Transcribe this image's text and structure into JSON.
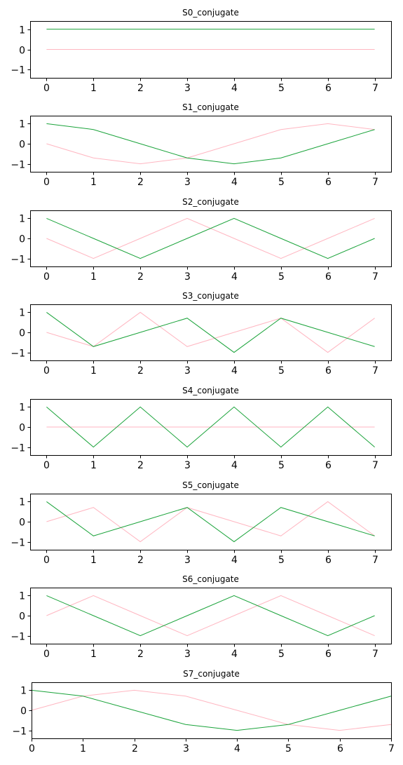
{
  "chart_data": [
    {
      "type": "line",
      "title": "S0_conjugate",
      "x": [
        0,
        1,
        2,
        3,
        4,
        5,
        6,
        7
      ],
      "xlim": [
        -0.35,
        7.35
      ],
      "ylim": [
        -1.4,
        1.4
      ],
      "xticks": [
        "0",
        "1",
        "2",
        "3",
        "4",
        "5",
        "6",
        "7"
      ],
      "yticks": [
        "1",
        "0",
        "−1"
      ],
      "ytick_values": [
        1,
        0,
        -1
      ],
      "grid": false,
      "series": [
        {
          "color": "#ffb6c1",
          "values": [
            0,
            0,
            0,
            0,
            0,
            0,
            0,
            0
          ]
        },
        {
          "color": "#1aa33a",
          "values": [
            1,
            1,
            1,
            1,
            1,
            1,
            1,
            1
          ]
        }
      ]
    },
    {
      "type": "line",
      "title": "S1_conjugate",
      "x": [
        0,
        1,
        2,
        3,
        4,
        5,
        6,
        7
      ],
      "xlim": [
        -0.35,
        7.35
      ],
      "ylim": [
        -1.4,
        1.4
      ],
      "xticks": [
        "0",
        "1",
        "2",
        "3",
        "4",
        "5",
        "6",
        "7"
      ],
      "yticks": [
        "1",
        "0",
        "−1"
      ],
      "ytick_values": [
        1,
        0,
        -1
      ],
      "grid": false,
      "series": [
        {
          "color": "#ffb6c1",
          "values": [
            0,
            -0.71,
            -1,
            -0.71,
            0,
            0.71,
            1,
            0.71
          ]
        },
        {
          "color": "#1aa33a",
          "values": [
            1,
            0.71,
            0,
            -0.71,
            -1,
            -0.71,
            0,
            0.71
          ]
        }
      ]
    },
    {
      "type": "line",
      "title": "S2_conjugate",
      "x": [
        0,
        1,
        2,
        3,
        4,
        5,
        6,
        7
      ],
      "xlim": [
        -0.35,
        7.35
      ],
      "ylim": [
        -1.4,
        1.4
      ],
      "xticks": [
        "0",
        "1",
        "2",
        "3",
        "4",
        "5",
        "6",
        "7"
      ],
      "yticks": [
        "1",
        "0",
        "−1"
      ],
      "ytick_values": [
        1,
        0,
        -1
      ],
      "grid": false,
      "series": [
        {
          "color": "#ffb6c1",
          "values": [
            0,
            -1,
            0,
            1,
            0,
            -1,
            0,
            1
          ]
        },
        {
          "color": "#1aa33a",
          "values": [
            1,
            0,
            -1,
            0,
            1,
            0,
            -1,
            0
          ]
        }
      ]
    },
    {
      "type": "line",
      "title": "S3_conjugate",
      "x": [
        0,
        1,
        2,
        3,
        4,
        5,
        6,
        7
      ],
      "xlim": [
        -0.35,
        7.35
      ],
      "ylim": [
        -1.4,
        1.4
      ],
      "xticks": [
        "0",
        "1",
        "2",
        "3",
        "4",
        "5",
        "6",
        "7"
      ],
      "yticks": [
        "1",
        "0",
        "−1"
      ],
      "ytick_values": [
        1,
        0,
        -1
      ],
      "grid": false,
      "series": [
        {
          "color": "#ffb6c1",
          "values": [
            0,
            -0.71,
            1,
            -0.71,
            0,
            0.71,
            -1,
            0.71
          ]
        },
        {
          "color": "#1aa33a",
          "values": [
            1,
            -0.71,
            0,
            0.71,
            -1,
            0.71,
            0,
            -0.71
          ]
        }
      ]
    },
    {
      "type": "line",
      "title": "S4_conjugate",
      "x": [
        0,
        1,
        2,
        3,
        4,
        5,
        6,
        7
      ],
      "xlim": [
        -0.35,
        7.35
      ],
      "ylim": [
        -1.4,
        1.4
      ],
      "xticks": [
        "0",
        "1",
        "2",
        "3",
        "4",
        "5",
        "6",
        "7"
      ],
      "yticks": [
        "1",
        "0",
        "−1"
      ],
      "ytick_values": [
        1,
        0,
        -1
      ],
      "grid": false,
      "series": [
        {
          "color": "#ffb6c1",
          "values": [
            0,
            0,
            0,
            0,
            0,
            0,
            0,
            0
          ]
        },
        {
          "color": "#1aa33a",
          "values": [
            1,
            -1,
            1,
            -1,
            1,
            -1,
            1,
            -1
          ]
        }
      ]
    },
    {
      "type": "line",
      "title": "S5_conjugate",
      "x": [
        0,
        1,
        2,
        3,
        4,
        5,
        6,
        7
      ],
      "xlim": [
        -0.35,
        7.35
      ],
      "ylim": [
        -1.4,
        1.4
      ],
      "xticks": [
        "0",
        "1",
        "2",
        "3",
        "4",
        "5",
        "6",
        "7"
      ],
      "yticks": [
        "1",
        "0",
        "−1"
      ],
      "ytick_values": [
        1,
        0,
        -1
      ],
      "grid": false,
      "series": [
        {
          "color": "#ffb6c1",
          "values": [
            0,
            0.71,
            -1,
            0.71,
            0,
            -0.71,
            1,
            -0.71
          ]
        },
        {
          "color": "#1aa33a",
          "values": [
            1,
            -0.71,
            0,
            0.71,
            -1,
            0.71,
            0,
            -0.71
          ]
        }
      ]
    },
    {
      "type": "line",
      "title": "S6_conjugate",
      "x": [
        0,
        1,
        2,
        3,
        4,
        5,
        6,
        7
      ],
      "xlim": [
        -0.35,
        7.35
      ],
      "ylim": [
        -1.4,
        1.4
      ],
      "xticks": [
        "0",
        "1",
        "2",
        "3",
        "4",
        "5",
        "6",
        "7"
      ],
      "yticks": [
        "1",
        "0",
        "−1"
      ],
      "ytick_values": [
        1,
        0,
        -1
      ],
      "grid": false,
      "series": [
        {
          "color": "#ffb6c1",
          "values": [
            0,
            1,
            0,
            -1,
            0,
            1,
            0,
            -1
          ]
        },
        {
          "color": "#1aa33a",
          "values": [
            1,
            0,
            -1,
            0,
            1,
            0,
            -1,
            0
          ]
        }
      ]
    },
    {
      "type": "line",
      "title": "S7_conjugate",
      "x": [
        0,
        1,
        2,
        3,
        4,
        5,
        6,
        7
      ],
      "xlim": [
        0,
        7
      ],
      "ylim": [
        -1.4,
        1.4
      ],
      "xticks": [
        "0",
        "1",
        "2",
        "3",
        "4",
        "5",
        "6",
        "7"
      ],
      "yticks": [
        "1",
        "0",
        "−1"
      ],
      "ytick_values": [
        1,
        0,
        -1
      ],
      "grid": false,
      "series": [
        {
          "color": "#ffb6c1",
          "values": [
            0,
            0.71,
            1,
            0.71,
            0,
            -0.71,
            -1,
            -0.71
          ]
        },
        {
          "color": "#1aa33a",
          "values": [
            1,
            0.71,
            0,
            -0.71,
            -1,
            -0.71,
            0,
            0.71
          ]
        }
      ]
    }
  ]
}
